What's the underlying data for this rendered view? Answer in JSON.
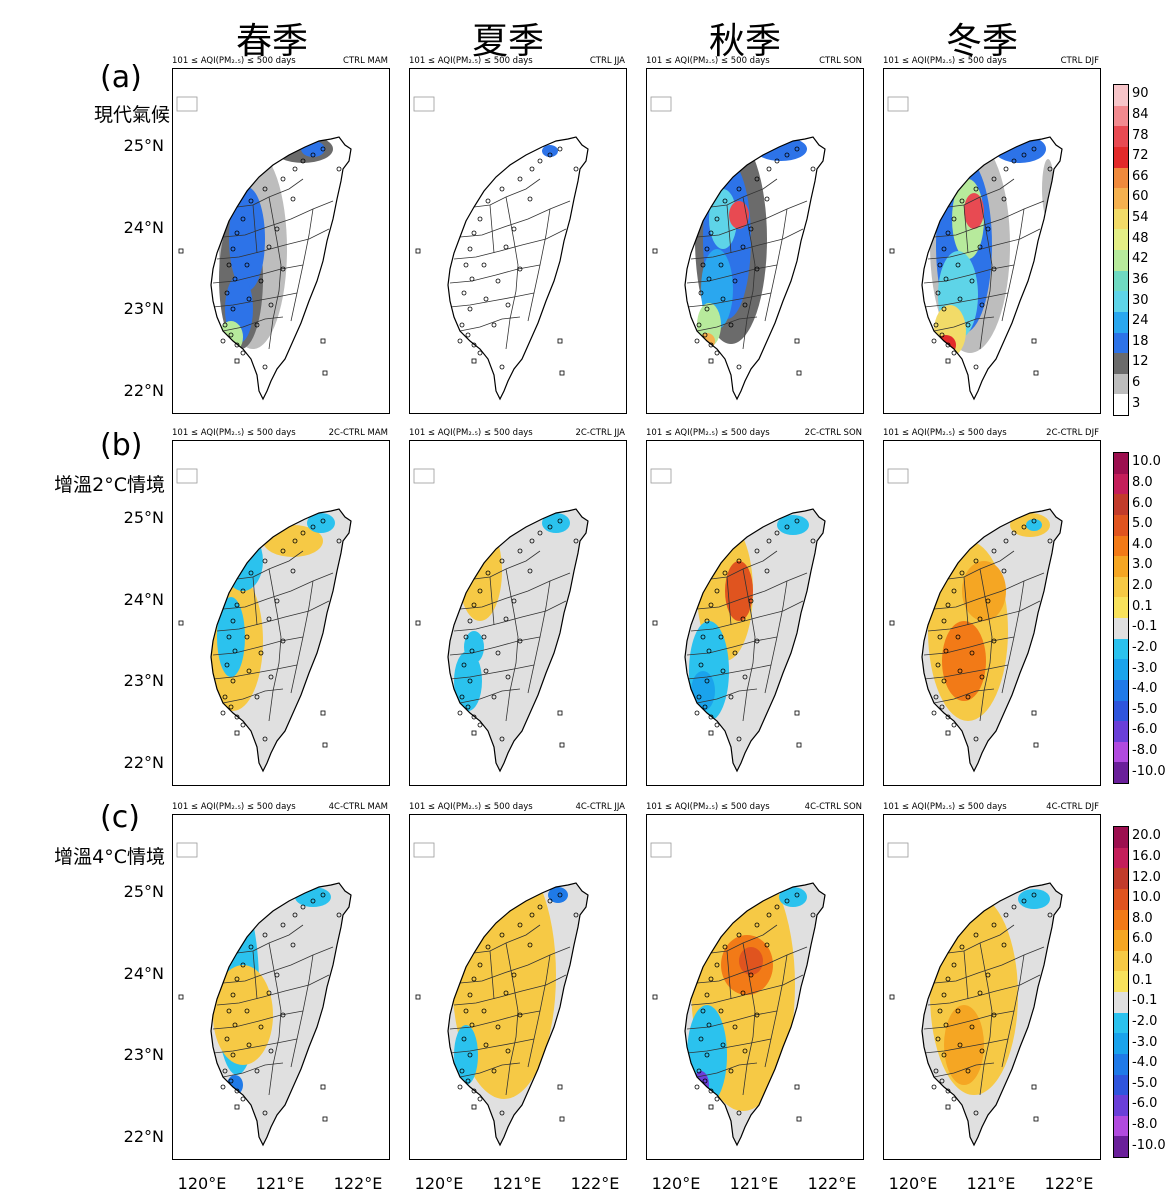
{
  "columns": [
    "春季",
    "夏季",
    "秋季",
    "冬季"
  ],
  "rows": [
    {
      "label": "(a)",
      "sub": "現代氣候",
      "panels": [
        {
          "left": "101 ≤ AQI(PM₂.₅) ≤ 500   days",
          "right": "CTRL MAM",
          "pattern": "ctrl-spring"
        },
        {
          "left": "101 ≤ AQI(PM₂.₅) ≤ 500   days",
          "right": "CTRL JJA",
          "pattern": "ctrl-summer"
        },
        {
          "left": "101 ≤ AQI(PM₂.₅) ≤ 500   days",
          "right": "CTRL SON",
          "pattern": "ctrl-autumn"
        },
        {
          "left": "101 ≤ AQI(PM₂.₅) ≤ 500   days",
          "right": "CTRL DJF",
          "pattern": "ctrl-winter"
        }
      ],
      "colorbar": {
        "labels": [
          "90",
          "84",
          "78",
          "72",
          "66",
          "60",
          "54",
          "48",
          "42",
          "36",
          "30",
          "24",
          "18",
          "12",
          "6",
          "3"
        ],
        "colors": [
          "#f7c5c9",
          "#f28a8f",
          "#e84a52",
          "#e22a2a",
          "#f08a3c",
          "#f5b14f",
          "#f2db68",
          "#e4ef86",
          "#b7ea9c",
          "#6fdac2",
          "#5ed4e8",
          "#2aa7ef",
          "#2d73e8",
          "#6b6b6b",
          "#bdbdbd",
          "#ffffff"
        ]
      }
    },
    {
      "label": "(b)",
      "sub": "增溫2°C情境",
      "panels": [
        {
          "left": "101 ≤ AQI(PM₂.₅) ≤ 500   days",
          "right": "2C-CTRL MAM",
          "pattern": "2c-spring"
        },
        {
          "left": "101 ≤ AQI(PM₂.₅) ≤ 500   days",
          "right": "2C-CTRL JJA",
          "pattern": "2c-summer"
        },
        {
          "left": "101 ≤ AQI(PM₂.₅) ≤ 500   days",
          "right": "2C-CTRL SON",
          "pattern": "2c-autumn"
        },
        {
          "left": "101 ≤ AQI(PM₂.₅) ≤ 500   days",
          "right": "2C-CTRL DJF",
          "pattern": "2c-winter"
        }
      ],
      "colorbar": {
        "labels": [
          "10.0",
          "8.0",
          "6.0",
          "5.0",
          "4.0",
          "3.0",
          "2.0",
          "0.1",
          "-0.1",
          "-2.0",
          "-3.0",
          "-4.0",
          "-5.0",
          "-6.0",
          "-8.0",
          "-10.0"
        ],
        "colors": [
          "#9c0f4f",
          "#c41e5a",
          "#c23b2b",
          "#e0541f",
          "#f27a17",
          "#f5a623",
          "#f6c945",
          "#f8e25c",
          "#e0e0e0",
          "#2bc2ee",
          "#1aa3ec",
          "#1f7ae8",
          "#2f55dd",
          "#6a3fd8",
          "#b14adf",
          "#6a1f9a"
        ]
      }
    },
    {
      "label": "(c)",
      "sub": "增溫4°C情境",
      "panels": [
        {
          "left": "101 ≤ AQI(PM₂.₅) ≤ 500   days",
          "right": "4C-CTRL MAM",
          "pattern": "4c-spring"
        },
        {
          "left": "101 ≤ AQI(PM₂.₅) ≤ 500   days",
          "right": "4C-CTRL JJA",
          "pattern": "4c-summer"
        },
        {
          "left": "101 ≤ AQI(PM₂.₅) ≤ 500   days",
          "right": "4C-CTRL SON",
          "pattern": "4c-autumn"
        },
        {
          "left": "101 ≤ AQI(PM₂.₅) ≤ 500   days",
          "right": "4C-CTRL DJF",
          "pattern": "4c-winter"
        }
      ],
      "colorbar": {
        "labels": [
          "20.0",
          "16.0",
          "12.0",
          "10.0",
          "8.0",
          "6.0",
          "4.0",
          "0.1",
          "-0.1",
          "-2.0",
          "-3.0",
          "-4.0",
          "-5.0",
          "-6.0",
          "-8.0",
          "-10.0"
        ],
        "colors": [
          "#9c0f4f",
          "#c41e5a",
          "#c23b2b",
          "#e0541f",
          "#f27a17",
          "#f5a623",
          "#f6c945",
          "#f8e25c",
          "#e0e0e0",
          "#2bc2ee",
          "#1aa3ec",
          "#1f7ae8",
          "#2f55dd",
          "#6a3fd8",
          "#b14adf",
          "#6a1f9a"
        ]
      }
    }
  ],
  "lat_labels": [
    "25°N",
    "24°N",
    "23°N",
    "22°N"
  ],
  "lon_labels": [
    "120°E",
    "121°E",
    "122°E"
  ]
}
